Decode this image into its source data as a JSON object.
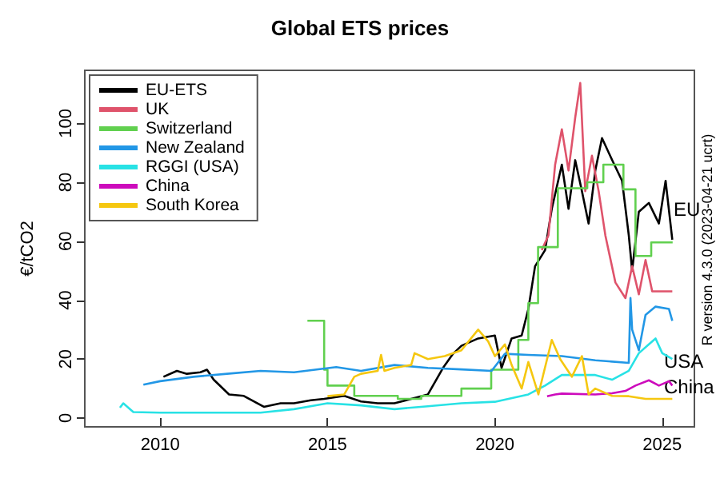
{
  "chart_data": {
    "type": "line",
    "title": "Global ETS prices",
    "ylabel": "€/tCO2",
    "xlim": [
      2007.75,
      2025.96
    ],
    "xticks": [
      2010,
      2015,
      2020,
      2025
    ],
    "ylim": [
      -3,
      118
    ],
    "yticks": [
      0,
      20,
      40,
      60,
      80,
      100
    ],
    "grid": false,
    "legend": "top left",
    "marker": "none",
    "line_style": "solid",
    "annotations": [
      "EU",
      "USA",
      "China",
      "R version 4.3.0 (2023-04-21 ucrt)"
    ],
    "series": [
      {
        "name": "EU-ETS",
        "color": "#000000",
        "x": [
          2010.1,
          2010.5,
          2010.8,
          2011.2,
          2011.4,
          2011.6,
          2012.06,
          2012.5,
          2013.1,
          2013.6,
          2014.0,
          2014.5,
          2014.9,
          2015.5,
          2016.0,
          2016.5,
          2017.0,
          2017.5,
          2018.0,
          2018.45,
          2018.75,
          2019.0,
          2019.5,
          2020.0,
          2020.2,
          2020.5,
          2020.8,
          2021.0,
          2021.2,
          2021.5,
          2021.7,
          2022.0,
          2022.2,
          2022.4,
          2022.6,
          2022.8,
          2023.0,
          2023.2,
          2023.5,
          2023.8,
          2024.0,
          2024.1,
          2024.3,
          2024.6,
          2024.9,
          2025.1,
          2025.3
        ],
        "values": [
          14,
          16,
          15,
          15.5,
          16.4,
          13,
          8,
          7.5,
          3.8,
          5,
          5,
          6,
          6.5,
          7.5,
          5.6,
          5,
          5,
          6.5,
          8,
          17,
          21.8,
          24.5,
          27,
          28,
          17,
          27,
          28,
          37,
          51.5,
          57,
          71,
          86,
          71,
          87.5,
          77,
          66,
          84,
          95,
          87.6,
          80.5,
          62,
          50,
          70,
          73,
          66,
          80.5,
          60.5
        ]
      },
      {
        "name": "UK",
        "color": "#df536b",
        "x": [
          2021.4,
          2021.6,
          2021.8,
          2022.0,
          2022.2,
          2022.4,
          2022.55,
          2022.7,
          2022.9,
          2023.1,
          2023.3,
          2023.6,
          2023.9,
          2024.1,
          2024.3,
          2024.5,
          2024.7,
          2025.3
        ],
        "values": [
          57,
          62,
          86,
          98,
          84,
          102,
          113.7,
          77,
          89,
          77,
          62,
          46,
          40.7,
          51.5,
          42,
          53.6,
          43,
          43
        ]
      },
      {
        "name": "Switzerland",
        "color": "#61d04f",
        "type": "step",
        "x": [
          2014.4,
          2014.9,
          2015.0,
          2015.8,
          2017.1,
          2017.8,
          2019.0,
          2019.89,
          2020.7,
          2021.0,
          2021.29,
          2021.88,
          2022.76,
          2023.24,
          2023.84,
          2024.2,
          2024.67,
          2025.31
        ],
        "values": [
          33,
          16.4,
          11,
          7.5,
          6.5,
          7.5,
          10,
          16.4,
          26.5,
          39,
          58,
          78,
          80,
          86,
          77.6,
          55,
          59.6,
          59.6
        ]
      },
      {
        "name": "New Zealand",
        "color": "#2297e6",
        "x": [
          2009.5,
          2010.0,
          2011.0,
          2012.0,
          2013.0,
          2014.0,
          2015.26,
          2016.0,
          2017.0,
          2018.0,
          2019.0,
          2019.9,
          2020.3,
          2021.0,
          2022.0,
          2023.0,
          2024.0,
          2024.05,
          2024.1,
          2024.3,
          2024.5,
          2024.8,
          2025.2,
          2025.3
        ],
        "values": [
          11.3,
          12.5,
          14,
          15,
          16,
          15.5,
          17.3,
          16,
          18,
          17,
          16.5,
          16,
          21.8,
          21.4,
          21,
          19.6,
          18.7,
          40.7,
          30,
          23,
          35,
          37.8,
          37,
          33
        ]
      },
      {
        "name": "RGGI (USA)",
        "color": "#28e2e5",
        "x": [
          2008.8,
          2008.9,
          2009.2,
          2010.0,
          2011.0,
          2012.0,
          2013.0,
          2014.0,
          2015.0,
          2016.0,
          2017.0,
          2018.0,
          2019.0,
          2020.0,
          2021.0,
          2021.5,
          2022.0,
          2022.5,
          2023.0,
          2023.5,
          2024.0,
          2024.3,
          2024.6,
          2024.8,
          2025.0,
          2025.3
        ],
        "values": [
          3.5,
          5,
          2,
          1.8,
          1.8,
          1.8,
          1.8,
          3,
          5,
          4.3,
          3,
          4,
          5,
          5.5,
          8,
          11,
          14.6,
          14.6,
          14.6,
          13,
          16,
          22,
          25,
          27,
          22,
          20
        ]
      },
      {
        "name": "China",
        "color": "#cd0bbc",
        "x": [
          2021.56,
          2021.8,
          2022.0,
          2023.0,
          2023.5,
          2023.9,
          2024.2,
          2024.6,
          2024.9,
          2025.2,
          2025.3
        ],
        "values": [
          7.4,
          8,
          8.3,
          8,
          8.4,
          9.2,
          11,
          12.8,
          11,
          12.5,
          11
        ]
      },
      {
        "name": "South Korea",
        "color": "#f5c710",
        "x": [
          2015.0,
          2015.5,
          2015.8,
          2016.0,
          2016.5,
          2016.6,
          2016.7,
          2017.0,
          2017.5,
          2017.6,
          2018.0,
          2018.5,
          2019.0,
          2019.5,
          2019.8,
          2020.0,
          2020.3,
          2020.5,
          2020.8,
          2021.0,
          2021.3,
          2021.7,
          2021.95,
          2022.3,
          2022.6,
          2022.8,
          2023.0,
          2023.5,
          2024.0,
          2024.5,
          2025.3
        ],
        "values": [
          7.4,
          8,
          14,
          15,
          16,
          21.4,
          16,
          17,
          18,
          22,
          20,
          21,
          23,
          30,
          26,
          21,
          25,
          18,
          10,
          19,
          8,
          26.5,
          20,
          14,
          21,
          8,
          10,
          7.5,
          7.4,
          6.5,
          6.5
        ]
      }
    ]
  }
}
